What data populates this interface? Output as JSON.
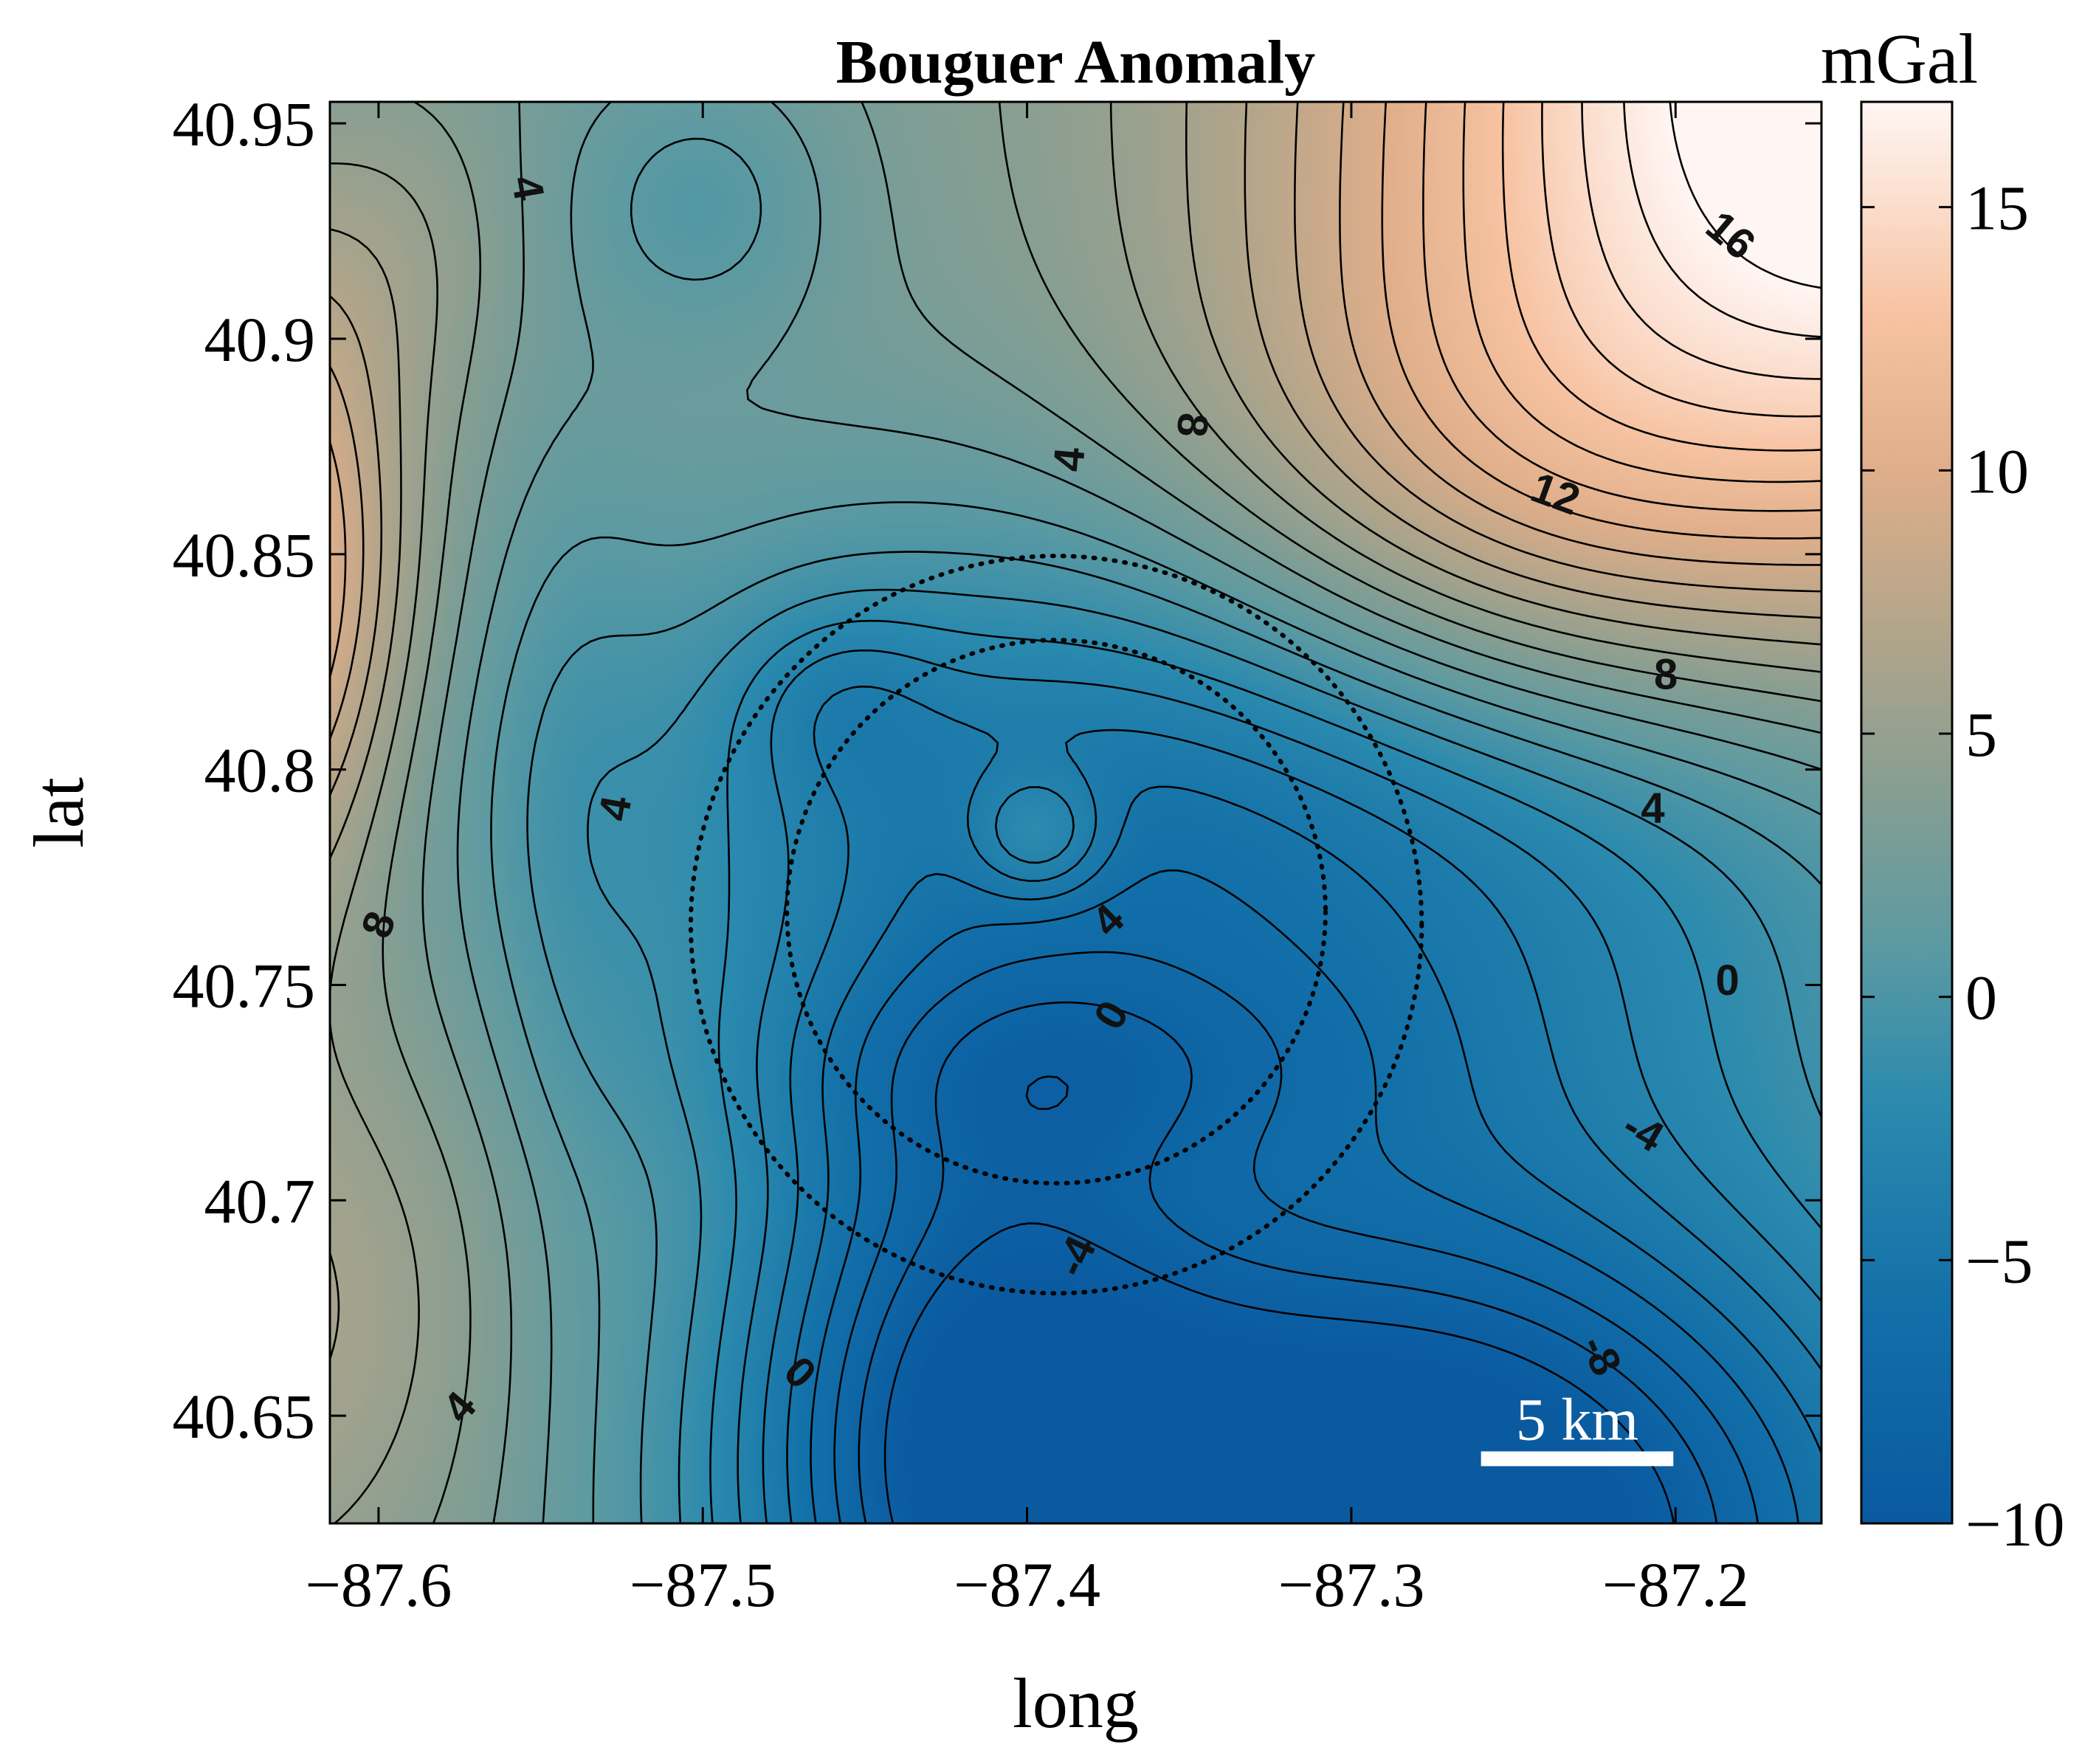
{
  "chart_data": {
    "type": "heatmap",
    "title": "Bouguer Anomaly",
    "xlabel": "long",
    "ylabel": "lat",
    "xlim": [
      -87.615,
      -87.155
    ],
    "ylim": [
      40.625,
      40.955
    ],
    "x_ticks": [
      {
        "value": -87.6,
        "label": "−87.6"
      },
      {
        "value": -87.5,
        "label": "−87.5"
      },
      {
        "value": -87.4,
        "label": "−87.4"
      },
      {
        "value": -87.3,
        "label": "−87.3"
      },
      {
        "value": -87.2,
        "label": "−87.2"
      }
    ],
    "y_ticks": [
      {
        "value": 40.95,
        "label": "40.95"
      },
      {
        "value": 40.9,
        "label": "40.9"
      },
      {
        "value": 40.85,
        "label": "40.85"
      },
      {
        "value": 40.8,
        "label": "40.8"
      },
      {
        "value": 40.75,
        "label": "40.75"
      },
      {
        "value": 40.7,
        "label": "40.7"
      },
      {
        "value": 40.65,
        "label": "40.65"
      }
    ],
    "colorbar": {
      "label": "mGal",
      "range": [
        -10,
        17
      ],
      "ticks": [
        {
          "value": 15,
          "label": "15"
        },
        {
          "value": 10,
          "label": "10"
        },
        {
          "value": 5,
          "label": "5"
        },
        {
          "value": 0,
          "label": "0"
        },
        {
          "value": -5,
          "label": "−5"
        },
        {
          "value": -10,
          "label": "−10"
        }
      ],
      "colors": [
        {
          "value": -10,
          "color": "#0a5aa0"
        },
        {
          "value": -6,
          "color": "#126fa8"
        },
        {
          "value": -2,
          "color": "#2b8aae"
        },
        {
          "value": 1,
          "color": "#5c9aa2"
        },
        {
          "value": 4,
          "color": "#879e92"
        },
        {
          "value": 7,
          "color": "#b3a58a"
        },
        {
          "value": 10,
          "color": "#dfae8a"
        },
        {
          "value": 13,
          "color": "#f7c3a2"
        },
        {
          "value": 17,
          "color": "#fff6f4"
        }
      ]
    },
    "contour_interval": 1,
    "contour_labels": [
      {
        "text": "4",
        "long": -87.554,
        "lat": 40.935,
        "angle": 80
      },
      {
        "text": "16",
        "long": -87.183,
        "lat": 40.924,
        "angle": 40
      },
      {
        "text": "8",
        "long": -87.349,
        "lat": 40.88,
        "angle": 95
      },
      {
        "text": "4",
        "long": -87.387,
        "lat": 40.872,
        "angle": -85
      },
      {
        "text": "12",
        "long": -87.237,
        "lat": 40.864,
        "angle": 20
      },
      {
        "text": "8",
        "long": -87.203,
        "lat": 40.822,
        "angle": 0
      },
      {
        "text": "4",
        "long": -87.207,
        "lat": 40.791,
        "angle": 0
      },
      {
        "text": "4",
        "long": -87.527,
        "lat": 40.791,
        "angle": -80
      },
      {
        "text": "4",
        "long": -87.375,
        "lat": 40.765,
        "angle": -45
      },
      {
        "text": "8",
        "long": -87.6,
        "lat": 40.764,
        "angle": -70
      },
      {
        "text": "0",
        "long": -87.184,
        "lat": 40.751,
        "angle": 0
      },
      {
        "text": "0",
        "long": -87.374,
        "lat": 40.743,
        "angle": -60
      },
      {
        "text": "-4",
        "long": -87.21,
        "lat": 40.716,
        "angle": 30
      },
      {
        "text": "-4",
        "long": -87.385,
        "lat": 40.687,
        "angle": -65
      },
      {
        "text": "-8",
        "long": -87.223,
        "lat": 40.664,
        "angle": 65
      },
      {
        "text": "0",
        "long": -87.47,
        "lat": 40.66,
        "angle": 45
      },
      {
        "text": "4",
        "long": -87.575,
        "lat": 40.652,
        "angle": -50
      }
    ],
    "circles": [
      {
        "center_long": -87.391,
        "center_lat": 40.767,
        "radius_km": 7.0
      },
      {
        "center_long": -87.391,
        "center_lat": 40.764,
        "radius_km": 9.5
      }
    ],
    "scale_bar": {
      "label": "5 km",
      "length_km": 5,
      "long_start": -87.26,
      "lat": 40.64
    }
  }
}
